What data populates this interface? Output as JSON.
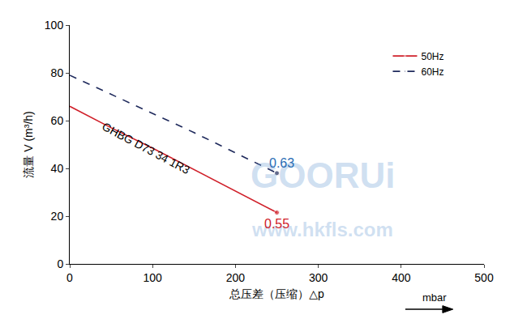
{
  "chart_data": {
    "type": "line",
    "x_title": "总压差（压缩）△p",
    "x_unit": "mbar",
    "y_title": "流量 V (m³/h)",
    "x": [
      0,
      50,
      100,
      150,
      200,
      250
    ],
    "series": [
      {
        "name": "50Hz",
        "color": "#d0202a",
        "line_style": "solid",
        "marker": "end",
        "values": [
          66,
          57,
          48.5,
          39.5,
          30.5,
          21.5
        ]
      },
      {
        "name": "60Hz",
        "color": "#1f2a5c",
        "line_style": "dash",
        "marker": "end",
        "values": [
          79,
          71,
          63,
          55,
          46.5,
          38
        ]
      }
    ],
    "annotations": [
      {
        "text": "0.55",
        "x": 250,
        "y": 21.5,
        "color": "#d0202a"
      },
      {
        "text": "0.63",
        "x": 250,
        "y": 38,
        "color": "#2a6db5"
      },
      {
        "text": "GHBG D73 34 1R3",
        "x": 92,
        "y": 45,
        "color": "#000000"
      }
    ],
    "watermark_texts": [
      "GOORUi",
      "www.hkfls.com"
    ],
    "xlim": [
      0,
      500
    ],
    "xticks": [
      0,
      100,
      200,
      300,
      400,
      500
    ],
    "ylim": [
      0,
      100
    ],
    "yticks": [
      0,
      20,
      40,
      60,
      80,
      100
    ],
    "grid": false,
    "legend": "upper right"
  }
}
